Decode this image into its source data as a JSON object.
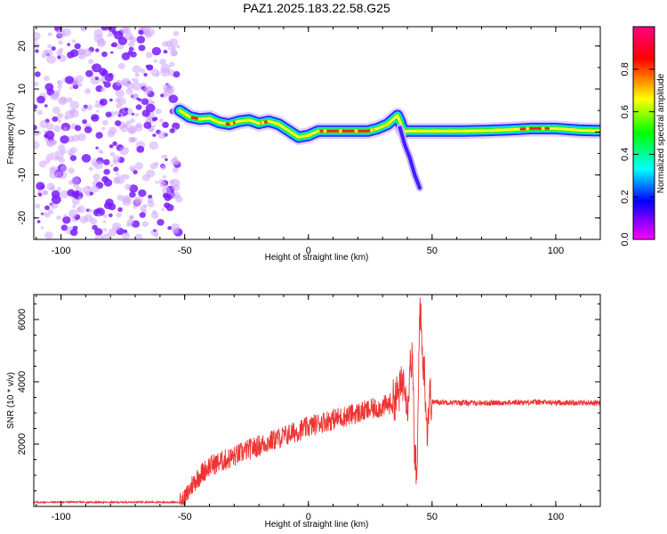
{
  "title": "PAZ1.2025.183.22.58.G25",
  "chart_data": [
    {
      "type": "heatmap",
      "xlabel": "Height of straight line (km)",
      "ylabel": "Frequency (Hz)",
      "xlim": [
        -111,
        118
      ],
      "ylim": [
        -25,
        24.5
      ],
      "xticks": [
        -100,
        -50,
        0,
        50,
        100
      ],
      "yticks": [
        -20,
        -10,
        0,
        10,
        20
      ],
      "colorbar": {
        "label": "Normalized spectral amplitude",
        "range": [
          0,
          1
        ],
        "ticks": [
          0.0,
          0.2,
          0.4,
          0.6,
          0.8
        ],
        "tick_labels": [
          "0.0",
          "0.2",
          "0.4",
          "0.6",
          "0.8"
        ],
        "colors": [
          "#ff00ff",
          "#0000ff",
          "#00ffff",
          "#00ff00",
          "#ffff00",
          "#ff0000",
          "#ff0080"
        ]
      },
      "noise_region_x": [
        -111,
        -52
      ],
      "ridge": {
        "x": [
          -52,
          -48,
          -44,
          -40,
          -36,
          -32,
          -28,
          -24,
          -20,
          -16,
          -12,
          -8,
          -4,
          0,
          4,
          8,
          12,
          16,
          20,
          24,
          28,
          32,
          34,
          36,
          37,
          38,
          39,
          40,
          42,
          44,
          48,
          52,
          60,
          70,
          80,
          90,
          100,
          110,
          118
        ],
        "y": [
          5,
          3.5,
          3,
          3.2,
          2.2,
          1.8,
          2.5,
          2.8,
          2,
          2.5,
          1.8,
          0.3,
          -1.2,
          -0.8,
          0.2,
          0.2,
          0.2,
          0.2,
          0.2,
          0.2,
          0.8,
          1.8,
          2.8,
          3.8,
          2.5,
          0.8,
          0,
          0.2,
          0.2,
          0.2,
          0.2,
          0.2,
          0.2,
          0.3,
          0.5,
          0.8,
          0.8,
          0.4,
          0.3
        ]
      },
      "branch": {
        "x": [
          37,
          39,
          41,
          42,
          43,
          44,
          45
        ],
        "y": [
          1,
          -3,
          -6,
          -8,
          -10,
          -11.5,
          -13
        ]
      }
    },
    {
      "type": "line",
      "xlabel": "Height of straight line (km)",
      "ylabel": "SNR (10 * v/v)",
      "xlim": [
        -111,
        118
      ],
      "ylim": [
        0,
        6800
      ],
      "xticks": [
        -100,
        -50,
        0,
        50,
        100
      ],
      "yticks": [
        2000,
        4000,
        6000
      ],
      "series": [
        {
          "color": "#ee3333",
          "x": [
            -111,
            -100,
            -90,
            -80,
            -70,
            -60,
            -52,
            -50,
            -47,
            -44,
            -40,
            -35,
            -30,
            -25,
            -20,
            -15,
            -10,
            -5,
            0,
            5,
            10,
            15,
            20,
            25,
            30,
            33,
            35,
            37,
            39,
            40,
            41,
            42,
            43,
            44,
            45,
            46,
            47,
            48,
            49,
            50,
            55,
            60,
            70,
            80,
            90,
            100,
            110,
            118
          ],
          "y": [
            130,
            140,
            135,
            130,
            140,
            135,
            130,
            200,
            700,
            1000,
            1300,
            1450,
            1600,
            1800,
            1950,
            2100,
            2250,
            2400,
            2550,
            2700,
            2800,
            2900,
            3000,
            3100,
            3200,
            3300,
            3450,
            3700,
            4200,
            3100,
            4500,
            4800,
            1500,
            900,
            6700,
            5000,
            4200,
            2400,
            3600,
            3350,
            3350,
            3330,
            3320,
            3330,
            3350,
            3330,
            3330,
            3320
          ]
        }
      ]
    }
  ]
}
